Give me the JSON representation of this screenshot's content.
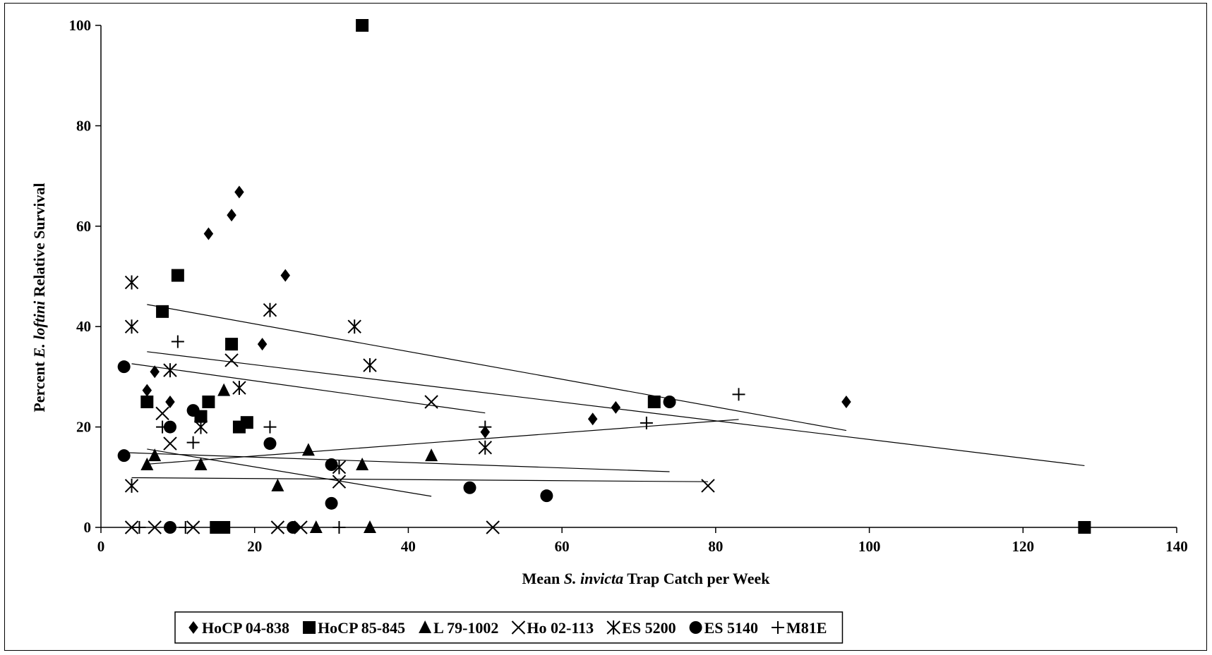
{
  "chart_data": {
    "type": "scatter",
    "title": "",
    "xlabel": "Mean S. invicta Trap Catch per Week",
    "xlabel_parts": [
      "Mean ",
      "S. invicta",
      " Trap Catch per Week"
    ],
    "ylabel": "Percent E. loftini Relative Survival",
    "ylabel_parts": [
      "Percent ",
      "E. loftini",
      " Relative Survival"
    ],
    "xlim": [
      0,
      140
    ],
    "ylim": [
      0,
      100
    ],
    "x_ticks": [
      "0",
      "20",
      "40",
      "60",
      "80",
      "100",
      "120",
      "140"
    ],
    "y_ticks": [
      "0",
      "20",
      "40",
      "60",
      "80",
      "100"
    ],
    "grid": false,
    "legend_position": "bottom",
    "series": [
      {
        "name": "HoCP 04-838",
        "marker": "diamond",
        "color": "#000000",
        "points": [
          [
            6,
            27.3
          ],
          [
            7,
            31
          ],
          [
            9,
            25
          ],
          [
            14,
            58.5
          ],
          [
            17,
            62.2
          ],
          [
            18,
            66.8
          ],
          [
            21,
            36.5
          ],
          [
            24,
            50.2
          ],
          [
            50,
            19
          ],
          [
            64,
            21.6
          ],
          [
            67,
            23.9
          ],
          [
            97,
            25
          ]
        ],
        "trend": [
          [
            6,
            44.4
          ],
          [
            97,
            19.3
          ]
        ]
      },
      {
        "name": "HoCP 85-845",
        "marker": "square",
        "color": "#000000",
        "points": [
          [
            6,
            25
          ],
          [
            8,
            43
          ],
          [
            10,
            50.2
          ],
          [
            13,
            22.1
          ],
          [
            14,
            25
          ],
          [
            15,
            0
          ],
          [
            16,
            0
          ],
          [
            17,
            36.5
          ],
          [
            18,
            20
          ],
          [
            19,
            20.9
          ],
          [
            34,
            100
          ],
          [
            72,
            25
          ],
          [
            128,
            0
          ]
        ],
        "trend": [
          [
            6,
            35
          ],
          [
            128,
            12.3
          ]
        ]
      },
      {
        "name": "L 79-1002",
        "marker": "triangle",
        "color": "#000000",
        "points": [
          [
            6,
            12.5
          ],
          [
            7,
            14.3
          ],
          [
            13,
            12.5
          ],
          [
            16,
            27.3
          ],
          [
            23,
            8.3
          ],
          [
            27,
            15.4
          ],
          [
            28,
            0
          ],
          [
            34,
            12.5
          ],
          [
            35,
            0
          ],
          [
            43,
            14.3
          ]
        ],
        "trend": [
          [
            6,
            12.6
          ],
          [
            83,
            21.5
          ]
        ]
      },
      {
        "name": "Ho 02-113",
        "marker": "x",
        "color": "#000000",
        "points": [
          [
            4,
            0
          ],
          [
            7,
            0
          ],
          [
            8,
            22.7
          ],
          [
            9,
            16.7
          ],
          [
            12,
            0
          ],
          [
            17,
            33.3
          ],
          [
            23,
            0
          ],
          [
            26,
            0
          ],
          [
            31,
            9.1
          ],
          [
            43,
            25
          ],
          [
            51,
            0
          ],
          [
            79,
            8.3
          ]
        ],
        "trend": [
          [
            4,
            9.9
          ],
          [
            79,
            9.1
          ]
        ]
      },
      {
        "name": "ES 5200",
        "marker": "asterisk",
        "color": "#000000",
        "points": [
          [
            4,
            48.8
          ],
          [
            4,
            40
          ],
          [
            4,
            8.3
          ],
          [
            9,
            31.3
          ],
          [
            13,
            20
          ],
          [
            18,
            27.8
          ],
          [
            22,
            43.3
          ],
          [
            31,
            12
          ],
          [
            33,
            40
          ],
          [
            35,
            32.3
          ],
          [
            50,
            15.9
          ]
        ],
        "trend": [
          [
            6,
            15.6
          ],
          [
            43,
            6.2
          ]
        ]
      },
      {
        "name": "ES 5140",
        "marker": "circle",
        "color": "#000000",
        "points": [
          [
            3,
            32
          ],
          [
            3,
            14.3
          ],
          [
            9,
            20
          ],
          [
            9,
            0
          ],
          [
            12,
            23.3
          ],
          [
            22,
            16.7
          ],
          [
            25,
            0
          ],
          [
            30,
            12.5
          ],
          [
            30,
            4.8
          ],
          [
            48,
            7.9
          ],
          [
            58,
            6.3
          ],
          [
            74,
            25
          ]
        ],
        "trend": [
          [
            3,
            14.9
          ],
          [
            74,
            11.1
          ]
        ]
      },
      {
        "name": "M81E",
        "marker": "plus",
        "color": "#000000",
        "points": [
          [
            5,
            0
          ],
          [
            8,
            20
          ],
          [
            10,
            37
          ],
          [
            11,
            0
          ],
          [
            12,
            16.9
          ],
          [
            22,
            20
          ],
          [
            31,
            0
          ],
          [
            50,
            20
          ],
          [
            71,
            20.8
          ],
          [
            83,
            26.5
          ]
        ],
        "trend": [
          [
            4,
            32.6
          ],
          [
            50,
            22.8
          ]
        ]
      }
    ]
  }
}
